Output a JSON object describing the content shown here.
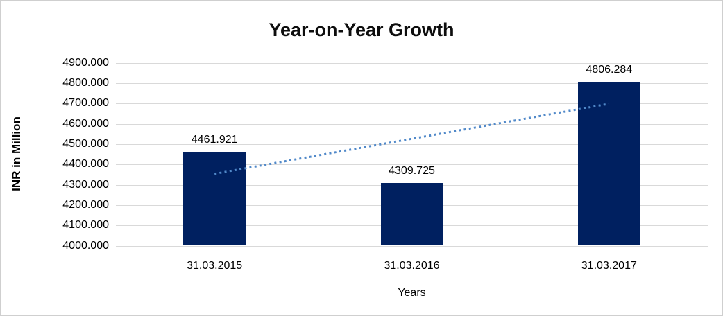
{
  "frame": {
    "background": "#ffffff",
    "border_color": "#cfcfcf"
  },
  "chart_data": {
    "type": "bar",
    "title": "Year-on-Year Growth",
    "xlabel": "Years",
    "ylabel": "INR in Million",
    "categories": [
      "31.03.2015",
      "31.03.2016",
      "31.03.2017"
    ],
    "values": [
      4461.921,
      4309.725,
      4806.284
    ],
    "value_labels": [
      "4461.921",
      "4309.725",
      "4806.284"
    ],
    "ylim": [
      4000,
      4900
    ],
    "ytick_step": 100,
    "ytick_labels": [
      "4000.000",
      "4100.000",
      "4200.000",
      "4300.000",
      "4400.000",
      "4500.000",
      "4600.000",
      "4700.000",
      "4800.000",
      "4900.000"
    ],
    "grid": true,
    "legend": "none",
    "bar_color": "#002060",
    "gridline_color": "#d9d9d9",
    "label_color": "#000000",
    "trendline": {
      "type": "linear",
      "style": "dotted",
      "color": "#5189c9"
    }
  }
}
